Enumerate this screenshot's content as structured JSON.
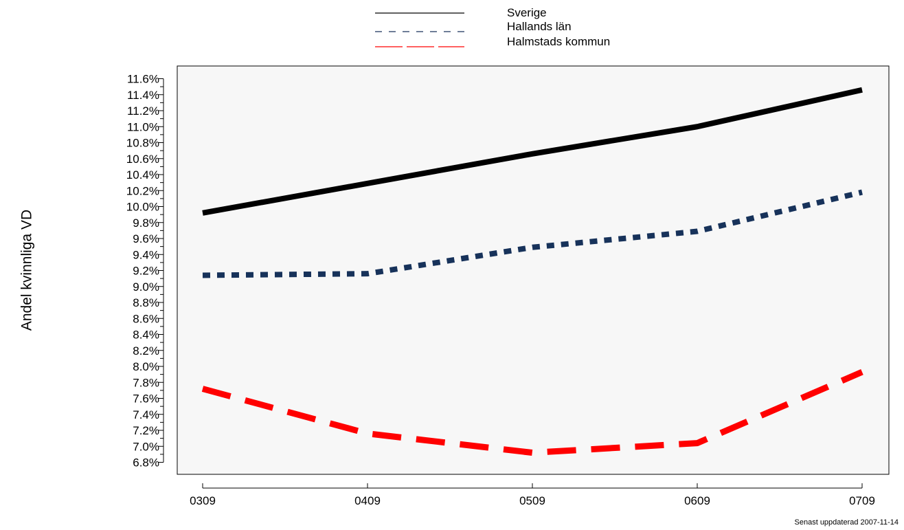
{
  "chart_data": {
    "type": "line",
    "categories": [
      "0309",
      "0409",
      "0509",
      "0609",
      "0709"
    ],
    "series": [
      {
        "name": "Sverige",
        "values": [
          9.92,
          10.29,
          10.66,
          11.0,
          11.46
        ],
        "color": "#000000",
        "style": "solid"
      },
      {
        "name": "Hallands län",
        "values": [
          9.14,
          9.16,
          9.49,
          9.69,
          10.18
        ],
        "color": "#17325a",
        "style": "dotted"
      },
      {
        "name": "Halmstads kommun",
        "values": [
          7.72,
          7.16,
          6.92,
          7.04,
          7.93
        ],
        "color": "#ff0000",
        "style": "dashed"
      }
    ],
    "title": "",
    "xlabel": "",
    "ylabel": "Andel kvinnliga VD",
    "ylim": [
      6.8,
      11.6
    ],
    "y_ticks": [
      "6.8%",
      "7.0%",
      "7.2%",
      "7.4%",
      "7.6%",
      "7.8%",
      "8.0%",
      "8.2%",
      "8.4%",
      "8.6%",
      "8.8%",
      "9.0%",
      "9.2%",
      "9.4%",
      "9.6%",
      "9.8%",
      "10.0%",
      "10.2%",
      "10.4%",
      "10.6%",
      "10.8%",
      "11.0%",
      "11.2%",
      "11.4%",
      "11.6%"
    ],
    "grid": false,
    "legend_position": "top-center",
    "plot_background": "#f7f7f7"
  },
  "footer": {
    "updated": "Senast uppdaterad 2007-11-14"
  }
}
